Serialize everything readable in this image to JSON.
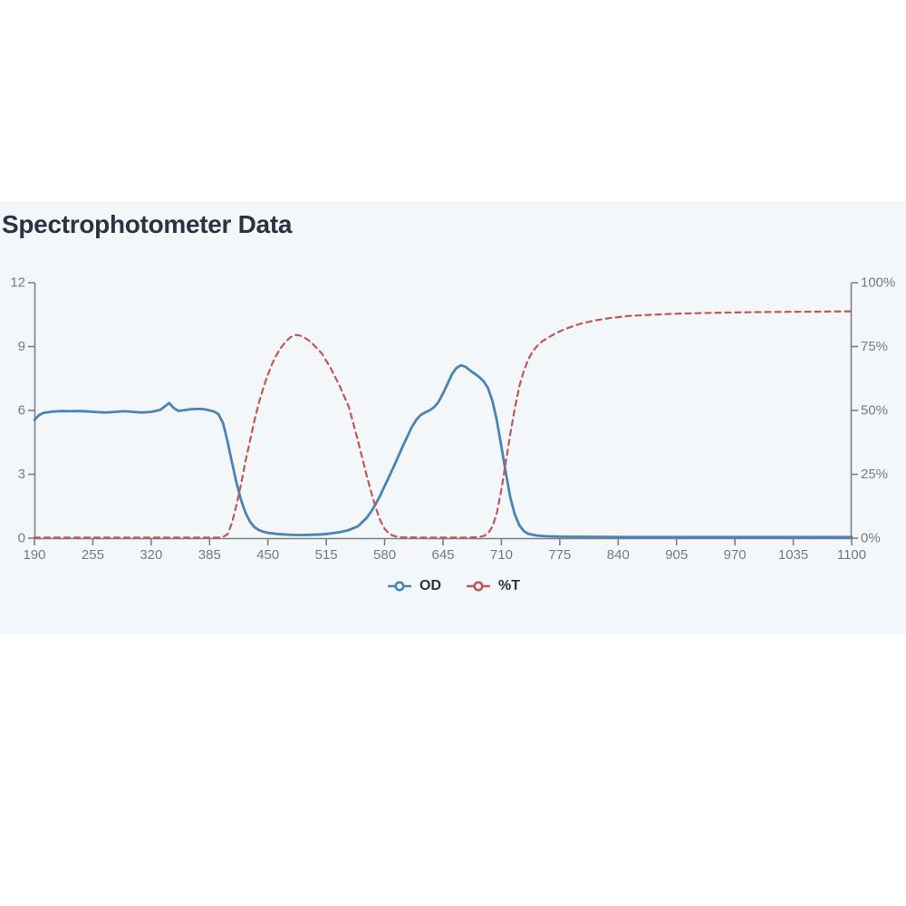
{
  "header": {
    "title": "Spectrophotometer Data"
  },
  "colors": {
    "panel_background": "#f4f7fa",
    "page_background": "#ffffff",
    "title": "#2c3242",
    "axis": "#7b7f86",
    "tick_text": "#767b82",
    "od_series": "#4a84b4",
    "t_series": "#c25757",
    "legend_text": "#2f333b"
  },
  "legend": {
    "items": [
      {
        "label": "OD",
        "color": "#4a84b4",
        "dashed": false
      },
      {
        "label": "%T",
        "color": "#c25757",
        "dashed": true
      }
    ]
  },
  "chart_data": {
    "type": "line",
    "title": "Spectrophotometer Data",
    "grid": false,
    "legend_position": "bottom",
    "xlabel": "",
    "x_axis": {
      "range": [
        190,
        1100
      ],
      "ticks": [
        190,
        255,
        320,
        385,
        450,
        515,
        580,
        645,
        710,
        775,
        840,
        905,
        970,
        1035,
        1100
      ]
    },
    "y_axis_left": {
      "series": "OD",
      "range": [
        0,
        12
      ],
      "ticks": [
        0,
        3,
        6,
        9,
        12
      ],
      "tick_labels": [
        "0",
        "3",
        "6",
        "9",
        "12"
      ]
    },
    "y_axis_right": {
      "series": "%T",
      "range": [
        0,
        100
      ],
      "ticks": [
        0,
        25,
        50,
        75,
        100
      ],
      "tick_labels": [
        "0%",
        "25%",
        "50%",
        "75%",
        "100%"
      ]
    },
    "series": [
      {
        "name": "OD",
        "axis": "left",
        "color": "#4a84b4",
        "style": "solid",
        "line_width": 2.8,
        "points": [
          [
            190,
            5.55
          ],
          [
            195,
            5.78
          ],
          [
            200,
            5.88
          ],
          [
            210,
            5.94
          ],
          [
            220,
            5.97
          ],
          [
            230,
            5.96
          ],
          [
            240,
            5.97
          ],
          [
            250,
            5.95
          ],
          [
            260,
            5.92
          ],
          [
            270,
            5.9
          ],
          [
            280,
            5.93
          ],
          [
            290,
            5.96
          ],
          [
            300,
            5.93
          ],
          [
            310,
            5.9
          ],
          [
            320,
            5.93
          ],
          [
            330,
            6.02
          ],
          [
            335,
            6.18
          ],
          [
            340,
            6.35
          ],
          [
            345,
            6.12
          ],
          [
            350,
            5.98
          ],
          [
            355,
            6.0
          ],
          [
            360,
            6.03
          ],
          [
            365,
            6.06
          ],
          [
            370,
            6.07
          ],
          [
            375,
            6.07
          ],
          [
            380,
            6.05
          ],
          [
            385,
            6.0
          ],
          [
            390,
            5.95
          ],
          [
            395,
            5.82
          ],
          [
            400,
            5.4
          ],
          [
            405,
            4.55
          ],
          [
            410,
            3.55
          ],
          [
            415,
            2.6
          ],
          [
            420,
            1.8
          ],
          [
            425,
            1.2
          ],
          [
            430,
            0.78
          ],
          [
            435,
            0.52
          ],
          [
            440,
            0.38
          ],
          [
            445,
            0.3
          ],
          [
            450,
            0.25
          ],
          [
            460,
            0.2
          ],
          [
            470,
            0.17
          ],
          [
            480,
            0.15
          ],
          [
            490,
            0.15
          ],
          [
            500,
            0.16
          ],
          [
            510,
            0.18
          ],
          [
            520,
            0.22
          ],
          [
            530,
            0.28
          ],
          [
            540,
            0.38
          ],
          [
            550,
            0.55
          ],
          [
            560,
            0.95
          ],
          [
            565,
            1.25
          ],
          [
            570,
            1.6
          ],
          [
            575,
            2.0
          ],
          [
            580,
            2.45
          ],
          [
            590,
            3.35
          ],
          [
            600,
            4.3
          ],
          [
            610,
            5.2
          ],
          [
            615,
            5.55
          ],
          [
            620,
            5.78
          ],
          [
            625,
            5.9
          ],
          [
            630,
            6.0
          ],
          [
            635,
            6.15
          ],
          [
            640,
            6.4
          ],
          [
            645,
            6.8
          ],
          [
            650,
            7.25
          ],
          [
            655,
            7.7
          ],
          [
            660,
            8.0
          ],
          [
            665,
            8.12
          ],
          [
            670,
            8.05
          ],
          [
            675,
            7.88
          ],
          [
            680,
            7.73
          ],
          [
            685,
            7.58
          ],
          [
            690,
            7.38
          ],
          [
            695,
            7.05
          ],
          [
            700,
            6.45
          ],
          [
            705,
            5.5
          ],
          [
            710,
            4.3
          ],
          [
            715,
            3.05
          ],
          [
            720,
            1.9
          ],
          [
            725,
            1.1
          ],
          [
            730,
            0.6
          ],
          [
            735,
            0.33
          ],
          [
            740,
            0.2
          ],
          [
            750,
            0.12
          ],
          [
            760,
            0.09
          ],
          [
            780,
            0.07
          ],
          [
            820,
            0.06
          ],
          [
            860,
            0.05
          ],
          [
            900,
            0.05
          ],
          [
            950,
            0.05
          ],
          [
            1000,
            0.05
          ],
          [
            1050,
            0.05
          ],
          [
            1100,
            0.05
          ]
        ]
      },
      {
        "name": "%T",
        "axis": "right",
        "color": "#c25757",
        "style": "dashed",
        "line_width": 2.2,
        "points": [
          [
            190,
            0.2
          ],
          [
            260,
            0.2
          ],
          [
            330,
            0.2
          ],
          [
            385,
            0.2
          ],
          [
            395,
            0.25
          ],
          [
            400,
            0.5
          ],
          [
            405,
            1.5
          ],
          [
            410,
            6
          ],
          [
            415,
            13
          ],
          [
            420,
            21
          ],
          [
            425,
            30
          ],
          [
            430,
            38
          ],
          [
            435,
            46
          ],
          [
            440,
            53
          ],
          [
            445,
            59
          ],
          [
            450,
            64
          ],
          [
            455,
            68.5
          ],
          [
            460,
            72
          ],
          [
            465,
            74.8
          ],
          [
            470,
            77
          ],
          [
            475,
            78.6
          ],
          [
            480,
            79.5
          ],
          [
            485,
            79.4
          ],
          [
            490,
            78.6
          ],
          [
            495,
            77.5
          ],
          [
            500,
            76
          ],
          [
            510,
            72.3
          ],
          [
            520,
            66.5
          ],
          [
            530,
            59.5
          ],
          [
            540,
            51.5
          ],
          [
            545,
            45
          ],
          [
            550,
            38.5
          ],
          [
            555,
            31.5
          ],
          [
            560,
            24.5
          ],
          [
            565,
            18
          ],
          [
            570,
            12
          ],
          [
            575,
            7
          ],
          [
            580,
            3.6
          ],
          [
            585,
            1.8
          ],
          [
            590,
            0.9
          ],
          [
            595,
            0.5
          ],
          [
            600,
            0.35
          ],
          [
            620,
            0.25
          ],
          [
            650,
            0.2
          ],
          [
            675,
            0.25
          ],
          [
            685,
            0.45
          ],
          [
            690,
            0.8
          ],
          [
            695,
            1.8
          ],
          [
            700,
            4.5
          ],
          [
            705,
            10
          ],
          [
            710,
            19
          ],
          [
            715,
            30
          ],
          [
            720,
            41
          ],
          [
            725,
            51
          ],
          [
            730,
            59.5
          ],
          [
            735,
            65.5
          ],
          [
            740,
            70
          ],
          [
            745,
            73.2
          ],
          [
            750,
            75.3
          ],
          [
            755,
            76.9
          ],
          [
            760,
            78.1
          ],
          [
            770,
            80.1
          ],
          [
            780,
            81.7
          ],
          [
            790,
            83
          ],
          [
            800,
            84.1
          ],
          [
            815,
            85.3
          ],
          [
            830,
            86.1
          ],
          [
            850,
            86.9
          ],
          [
            870,
            87.3
          ],
          [
            900,
            87.8
          ],
          [
            930,
            88.1
          ],
          [
            960,
            88.3
          ],
          [
            1000,
            88.5
          ],
          [
            1040,
            88.6
          ],
          [
            1070,
            88.7
          ],
          [
            1100,
            88.8
          ]
        ]
      }
    ]
  }
}
